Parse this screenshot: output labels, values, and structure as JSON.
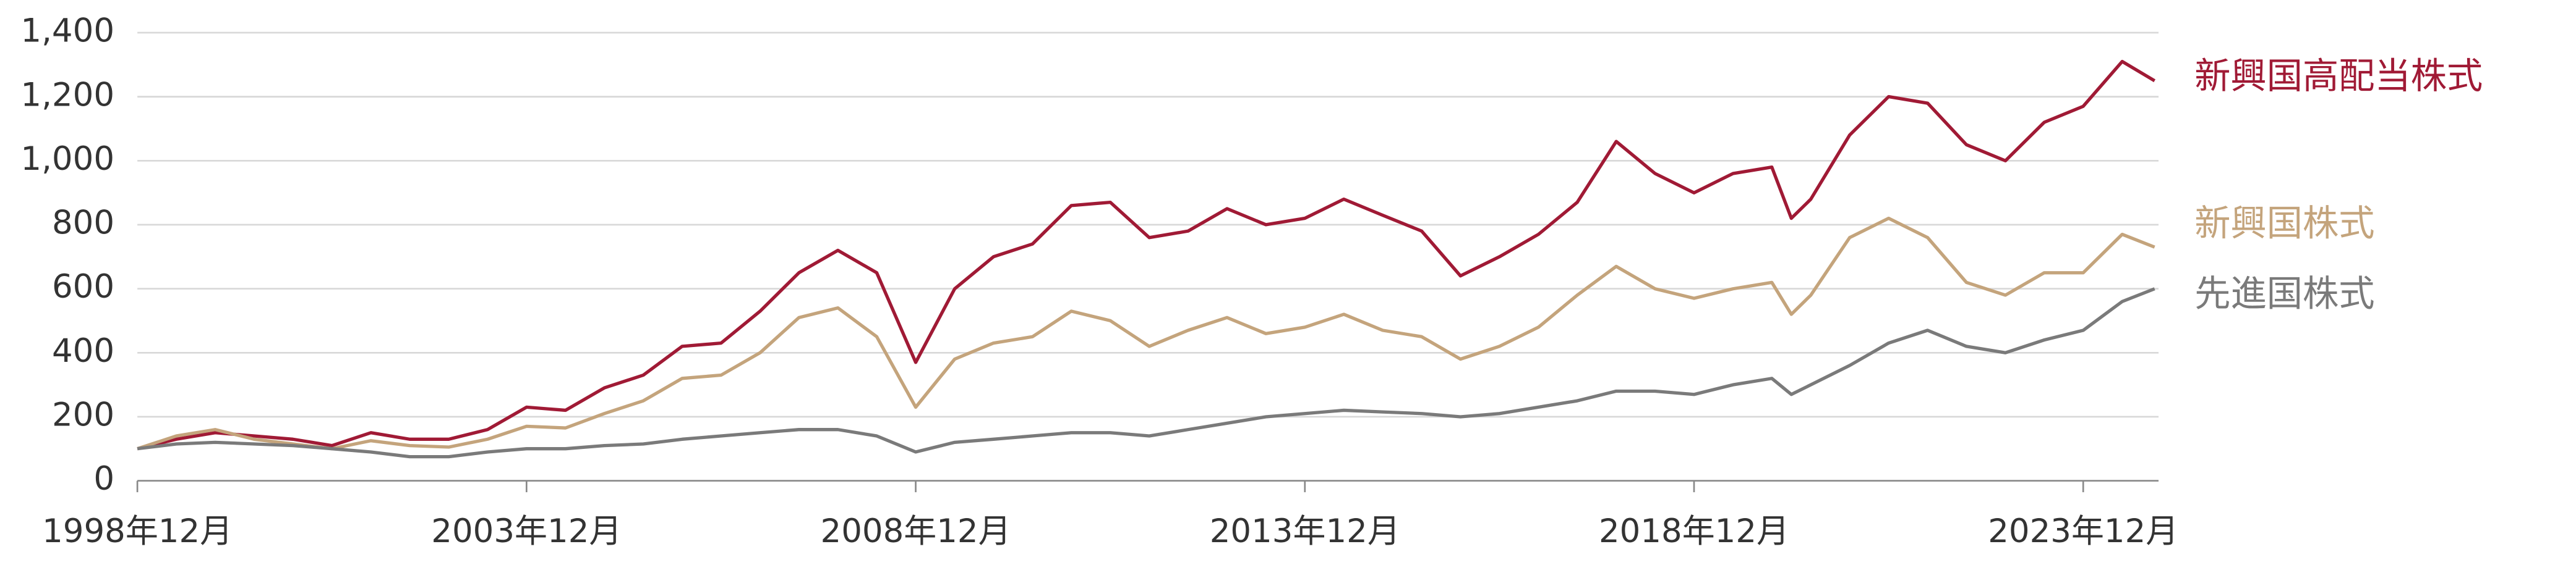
{
  "chart_data": {
    "type": "line",
    "x": [
      "1998-12",
      "1999-06",
      "1999-12",
      "2000-06",
      "2000-12",
      "2001-06",
      "2001-12",
      "2002-06",
      "2002-12",
      "2003-06",
      "2003-12",
      "2004-06",
      "2004-12",
      "2005-06",
      "2005-12",
      "2006-06",
      "2006-12",
      "2007-06",
      "2007-12",
      "2008-06",
      "2008-12",
      "2009-06",
      "2009-12",
      "2010-06",
      "2010-12",
      "2011-06",
      "2011-12",
      "2012-06",
      "2012-12",
      "2013-06",
      "2013-12",
      "2014-06",
      "2014-12",
      "2015-06",
      "2015-12",
      "2016-06",
      "2016-12",
      "2017-06",
      "2017-12",
      "2018-06",
      "2018-12",
      "2019-06",
      "2019-12",
      "2020-03",
      "2020-06",
      "2020-12",
      "2021-06",
      "2021-12",
      "2022-06",
      "2022-12",
      "2023-06",
      "2023-12",
      "2024-06",
      "2024-11"
    ],
    "series": [
      {
        "name": "新興国高配当株式",
        "color": "#a01a35",
        "values": [
          100,
          130,
          150,
          140,
          130,
          110,
          150,
          130,
          130,
          160,
          230,
          220,
          290,
          330,
          420,
          430,
          530,
          650,
          720,
          650,
          370,
          600,
          700,
          740,
          860,
          870,
          760,
          780,
          850,
          800,
          820,
          880,
          830,
          780,
          640,
          700,
          770,
          870,
          1060,
          960,
          900,
          960,
          980,
          820,
          880,
          1080,
          1200,
          1180,
          1050,
          1000,
          1120,
          1170,
          1310,
          1250
        ]
      },
      {
        "name": "新興国株式",
        "color": "#c4a47c",
        "values": [
          100,
          140,
          160,
          130,
          115,
          100,
          125,
          110,
          105,
          130,
          170,
          165,
          210,
          250,
          320,
          330,
          400,
          510,
          540,
          450,
          230,
          380,
          430,
          450,
          530,
          500,
          420,
          470,
          510,
          460,
          480,
          520,
          470,
          450,
          380,
          420,
          480,
          580,
          670,
          600,
          570,
          600,
          620,
          520,
          580,
          760,
          820,
          760,
          620,
          580,
          650,
          650,
          770,
          730
        ]
      },
      {
        "name": "先進国株式",
        "color": "#7a7a7a",
        "values": [
          100,
          115,
          120,
          115,
          110,
          100,
          90,
          75,
          75,
          90,
          100,
          100,
          110,
          115,
          130,
          140,
          150,
          160,
          160,
          140,
          90,
          120,
          130,
          140,
          150,
          150,
          140,
          160,
          180,
          200,
          210,
          220,
          215,
          210,
          200,
          210,
          230,
          250,
          280,
          280,
          270,
          300,
          320,
          270,
          300,
          360,
          430,
          470,
          420,
          400,
          440,
          470,
          560,
          600
        ]
      }
    ],
    "ylim": [
      0,
      1400
    ],
    "yticks": [
      0,
      200,
      400,
      600,
      800,
      {
        "value": 1000,
        "label": "1,000"
      },
      {
        "value": 1200,
        "label": "1,200"
      },
      {
        "value": 1400,
        "label": "1,400"
      }
    ],
    "xticks": [
      {
        "value": "1998-12",
        "label": "1998年12月"
      },
      {
        "value": "2003-12",
        "label": "2003年12月"
      },
      {
        "value": "2008-12",
        "label": "2008年12月"
      },
      {
        "value": "2013-12",
        "label": "2013年12月"
      },
      {
        "value": "2018-12",
        "label": "2018年12月"
      },
      {
        "value": "2023-12",
        "label": "2023年12月"
      }
    ],
    "grid": true
  }
}
